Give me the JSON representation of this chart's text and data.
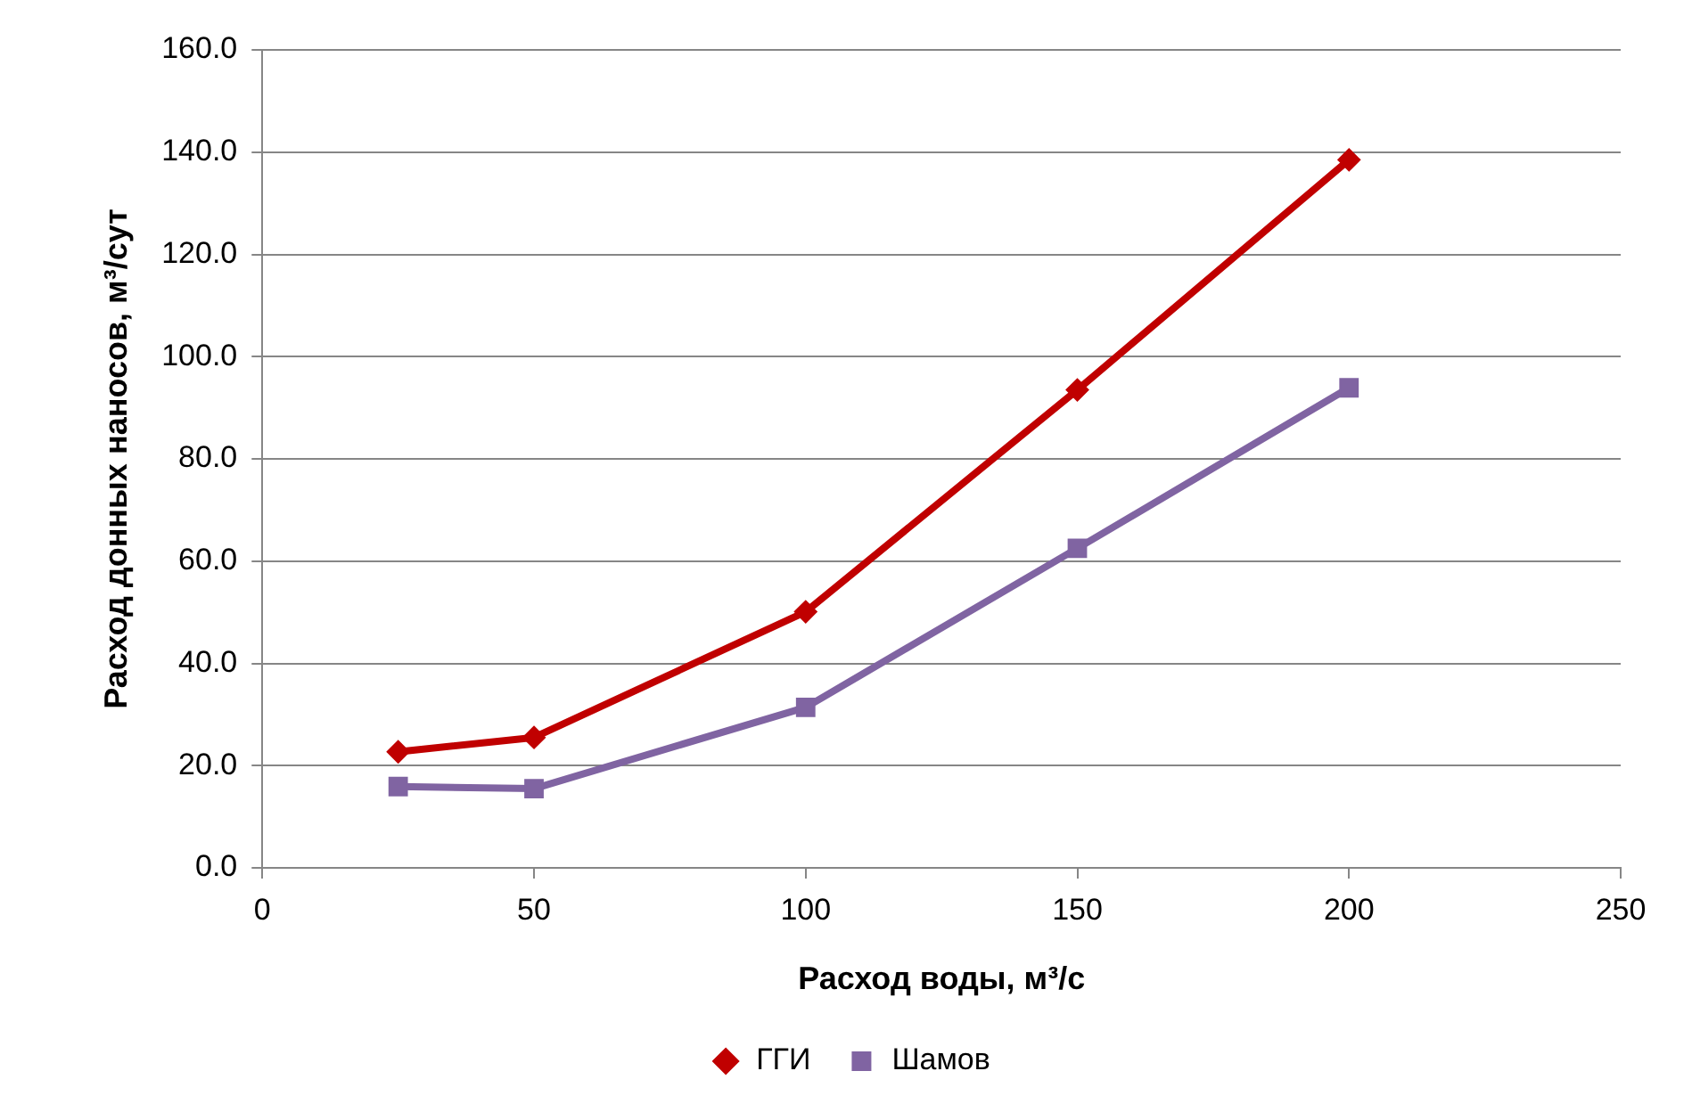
{
  "chart_data": {
    "type": "line",
    "xlabel": "Расход воды, м³/с",
    "ylabel": "Расход донных наносов, м³/сут",
    "x": [
      25,
      50,
      100,
      150,
      200
    ],
    "series": [
      {
        "name": "ГГИ",
        "color": "#c00000",
        "marker": "diamond",
        "values": [
          22.7,
          25.5,
          50.1,
          93.5,
          138.5
        ]
      },
      {
        "name": "Шамов",
        "color": "#8064a2",
        "marker": "square",
        "values": [
          15.9,
          15.5,
          31.4,
          62.5,
          93.9
        ]
      }
    ],
    "xlim": [
      0,
      250
    ],
    "xticks": [
      0,
      50,
      100,
      150,
      200,
      250
    ],
    "ylim": [
      0,
      160
    ],
    "yticks": [
      {
        "value": 0,
        "label": "0.0"
      },
      {
        "value": 20,
        "label": "20.0"
      },
      {
        "value": 40,
        "label": "40.0"
      },
      {
        "value": 60,
        "label": "60.0"
      },
      {
        "value": 80,
        "label": "80.0"
      },
      {
        "value": 100,
        "label": "100.0"
      },
      {
        "value": 120,
        "label": "120.0"
      },
      {
        "value": 140,
        "label": "140.0"
      },
      {
        "value": 160,
        "label": "160.0"
      }
    ],
    "grid": "y",
    "legend": "bottom",
    "line_style": "solid"
  }
}
